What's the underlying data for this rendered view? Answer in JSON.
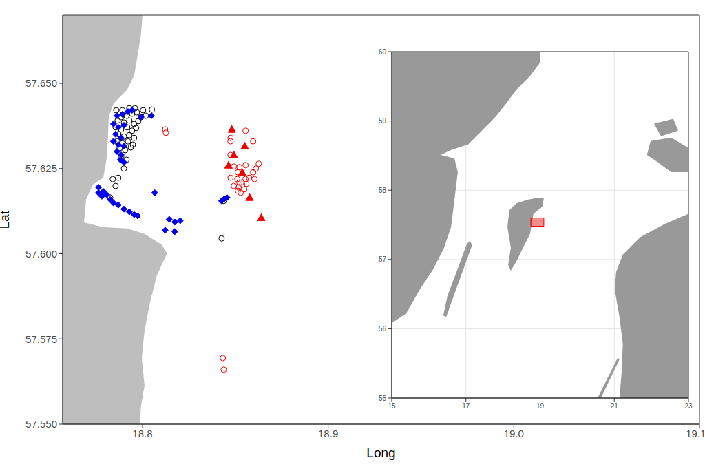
{
  "chart_data": [
    {
      "type": "scatter",
      "x_label": "Long",
      "y_label": "Lat",
      "xlim": [
        18.757,
        19.1
      ],
      "ylim": [
        57.55,
        57.67
      ],
      "xticks": [
        18.8,
        18.9,
        {
          "value": 19,
          "label": "19.0"
        },
        19.1
      ],
      "yticks": [
        {
          "value": 57.55,
          "label": "57.550"
        },
        {
          "value": 57.575,
          "label": "57.575"
        },
        {
          "value": 57.6,
          "label": "57.600"
        },
        {
          "value": 57.625,
          "label": "57.625"
        },
        {
          "value": 57.65,
          "label": "57.650"
        }
      ],
      "grid": false,
      "land": [
        [
          [
            18.757,
            57.67
          ],
          [
            18.8,
            57.67
          ],
          [
            18.7992,
            57.6643
          ],
          [
            18.7974,
            57.6583
          ],
          [
            18.7955,
            57.6523
          ],
          [
            18.7918,
            57.6482
          ],
          [
            18.7844,
            57.6441
          ],
          [
            18.7818,
            57.6401
          ],
          [
            18.7814,
            57.634
          ],
          [
            18.7807,
            57.628
          ],
          [
            18.7789,
            57.6223
          ],
          [
            18.7733,
            57.6203
          ],
          [
            18.7696,
            57.6159
          ],
          [
            18.7685,
            57.6092
          ],
          [
            18.7789,
            57.6078
          ],
          [
            18.7918,
            57.6074
          ],
          [
            18.8011,
            57.6058
          ],
          [
            18.8103,
            57.6027
          ],
          [
            18.8133,
            57.6001
          ],
          [
            18.8103,
            57.5967
          ],
          [
            18.8077,
            57.5936
          ],
          [
            18.804,
            57.5856
          ],
          [
            18.8011,
            57.5775
          ],
          [
            18.7996,
            57.5694
          ],
          [
            18.8011,
            57.5613
          ],
          [
            18.7992,
            57.5553
          ],
          [
            18.7985,
            57.55
          ],
          [
            18.757,
            57.55
          ]
        ]
      ],
      "series": [
        {
          "color": "#000000",
          "marker": "open_circle",
          "x": [
            18.7859,
            18.7892,
            18.7929,
            18.7959,
            18.8003,
            18.8051,
            18.7885,
            18.7914,
            18.7944,
            18.797,
            18.7992,
            18.8018,
            18.7866,
            18.79,
            18.7929,
            18.7955,
            18.7977,
            18.7855,
            18.7885,
            18.7918,
            18.7944,
            18.7966,
            18.787,
            18.79,
            18.7929,
            18.7955,
            18.7863,
            18.7892,
            18.7922,
            18.7948,
            18.7877,
            18.7907,
            18.7937,
            18.7885,
            18.7914,
            18.79,
            18.784,
            18.787,
            18.7855,
            18.7826,
            18.8437,
            18.8426
          ],
          "y": [
            57.6421,
            57.6421,
            57.6427,
            57.6427,
            57.6421,
            57.6423,
            57.6401,
            57.6405,
            57.6411,
            57.6415,
            57.6401,
            57.6405,
            57.6391,
            57.6385,
            57.6391,
            57.6381,
            57.6389,
            57.6371,
            57.6365,
            57.6371,
            57.6361,
            57.6369,
            57.6351,
            57.6344,
            57.6348,
            57.634,
            57.633,
            57.6324,
            57.633,
            57.632,
            57.631,
            57.6304,
            57.6312,
            57.6284,
            57.6276,
            57.625,
            57.6219,
            57.6223,
            57.6199,
            57.6165,
            57.6155,
            57.6045
          ]
        },
        {
          "color": "#0000ee",
          "marker": "diamond",
          "x": [
            18.7863,
            18.7892,
            18.7922,
            18.7944,
            18.7992,
            18.8048,
            18.7844,
            18.787,
            18.79,
            18.7855,
            18.7885,
            18.7844,
            18.787,
            18.79,
            18.7863,
            18.7885,
            18.7881,
            18.79,
            18.7763,
            18.7789,
            18.7763,
            18.7781,
            18.7807,
            18.7826,
            18.7844,
            18.787,
            18.79,
            18.7929,
            18.7955,
            18.7974,
            18.8066,
            18.8144,
            18.8174,
            18.8203,
            18.8122,
            18.8174,
            18.8426,
            18.844,
            18.8455
          ],
          "y": [
            57.6405,
            57.6409,
            57.6417,
            57.6421,
            57.6401,
            57.6405,
            57.6381,
            57.6371,
            57.6377,
            57.6351,
            57.634,
            57.633,
            57.632,
            57.6316,
            57.63,
            57.629,
            57.6276,
            57.6268,
            57.6195,
            57.6183,
            57.6179,
            57.6169,
            57.6173,
            57.6159,
            57.6149,
            57.6143,
            57.6131,
            57.6123,
            57.6115,
            57.6111,
            57.6179,
            57.6101,
            57.6093,
            57.6097,
            57.6069,
            57.6065,
            57.6155,
            57.6161,
            57.6165
          ]
        },
        {
          "color": "#ee0000",
          "marker": "open_circle",
          "x": [
            18.8122,
            18.8126,
            18.8474,
            18.8474,
            18.8555,
            18.8596,
            18.8474,
            18.8492,
            18.8514,
            18.8474,
            18.8511,
            18.8522,
            18.8492,
            18.8518,
            18.8537,
            18.8555,
            18.8574,
            18.8596,
            18.8626,
            18.8611,
            18.8529,
            18.8514,
            18.8548,
            18.8559,
            18.8603,
            18.8555,
            18.8522,
            18.8433,
            18.8437
          ],
          "y": [
            57.6365,
            57.6355,
            57.634,
            57.633,
            57.6361,
            57.633,
            57.629,
            57.6256,
            57.6239,
            57.6223,
            57.6219,
            57.6209,
            57.6199,
            57.6195,
            57.6203,
            57.6219,
            57.6223,
            57.6239,
            57.6264,
            57.625,
            57.6179,
            57.6185,
            57.6189,
            57.6205,
            57.6219,
            57.626,
            57.6254,
            57.5694,
            57.566
          ]
        },
        {
          "color": "#ee0000",
          "marker": "triangle",
          "x": [
            18.8481,
            18.8492,
            18.8463,
            18.8551,
            18.8537,
            18.8577,
            18.864
          ],
          "y": [
            57.6365,
            57.629,
            57.626,
            57.6316,
            57.6239,
            57.6165,
            57.6106
          ]
        }
      ]
    },
    {
      "type": "map",
      "xlim": [
        15,
        23
      ],
      "ylim": [
        55,
        60
      ],
      "xticks": [
        15,
        17,
        19,
        21,
        23
      ],
      "yticks": [
        55,
        56,
        57,
        58,
        59,
        60
      ],
      "grid": true,
      "land": [
        [
          [
            15,
            60
          ],
          [
            19.01,
            60
          ],
          [
            19.01,
            59.85
          ],
          [
            18.73,
            59.65
          ],
          [
            18.36,
            59.45
          ],
          [
            18.08,
            59.25
          ],
          [
            17.8,
            59.06
          ],
          [
            17.43,
            58.86
          ],
          [
            17.06,
            58.66
          ],
          [
            16.6,
            58.58
          ],
          [
            16.32,
            58.51
          ],
          [
            16.69,
            58.46
          ],
          [
            16.78,
            58.26
          ],
          [
            16.69,
            57.86
          ],
          [
            16.6,
            57.47
          ],
          [
            16.41,
            57.17
          ],
          [
            16.13,
            56.87
          ],
          [
            15.76,
            56.57
          ],
          [
            15.39,
            56.22
          ],
          [
            15.11,
            56.12
          ],
          [
            15,
            56.09
          ]
        ],
        [
          [
            18.64,
            57.86
          ],
          [
            18.91,
            57.89
          ],
          [
            19.1,
            57.88
          ],
          [
            19.06,
            57.76
          ],
          [
            18.82,
            57.66
          ],
          [
            18.73,
            57.37
          ],
          [
            18.54,
            57.17
          ],
          [
            18.36,
            56.97
          ],
          [
            18.21,
            56.84
          ],
          [
            18.14,
            56.92
          ],
          [
            18.21,
            57.17
          ],
          [
            18.12,
            57.47
          ],
          [
            18.17,
            57.71
          ],
          [
            18.36,
            57.81
          ]
        ],
        [
          [
            17.1,
            57.27
          ],
          [
            17.17,
            57.21
          ],
          [
            16.87,
            56.77
          ],
          [
            16.6,
            56.37
          ],
          [
            16.47,
            56.17
          ],
          [
            16.39,
            56.19
          ],
          [
            16.5,
            56.47
          ],
          [
            16.78,
            56.87
          ],
          [
            17.02,
            57.22
          ]
        ],
        [
          [
            23,
            57.66
          ],
          [
            22.35,
            57.51
          ],
          [
            21.7,
            57.32
          ],
          [
            21.23,
            57.07
          ],
          [
            21.05,
            56.82
          ],
          [
            21.01,
            56.57
          ],
          [
            21.14,
            56.17
          ],
          [
            21.23,
            55.78
          ],
          [
            21.2,
            55.38
          ],
          [
            21.14,
            55
          ],
          [
            23,
            55
          ]
        ],
        [
          [
            21.98,
            58.71
          ],
          [
            22.53,
            58.76
          ],
          [
            23,
            58.61
          ],
          [
            23,
            58.26
          ],
          [
            22.53,
            58.26
          ],
          [
            22.16,
            58.41
          ],
          [
            21.88,
            58.51
          ]
        ],
        [
          [
            22.07,
            58.96
          ],
          [
            22.59,
            59.03
          ],
          [
            22.72,
            58.86
          ],
          [
            22.26,
            58.78
          ]
        ],
        [
          [
            20.55,
            55
          ],
          [
            21.09,
            55.58
          ],
          [
            21.14,
            55.56
          ],
          [
            20.64,
            55
          ]
        ]
      ],
      "highlight": {
        "x": [
          18.75,
          19.1
        ],
        "y": [
          57.48,
          57.6
        ],
        "color": "#ee0000"
      }
    }
  ]
}
